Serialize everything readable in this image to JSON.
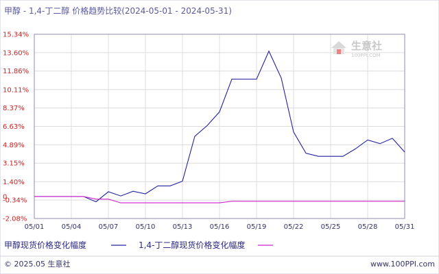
{
  "chart_data": {
    "type": "line",
    "title": "甲醇 - 1,4-丁二醇 价格趋势比较(2024-05-01 - 2024-05-31)",
    "x": [
      "05/01",
      "05/02",
      "05/03",
      "05/04",
      "05/05",
      "05/06",
      "05/07",
      "05/08",
      "05/09",
      "05/10",
      "05/11",
      "05/12",
      "05/13",
      "05/14",
      "05/15",
      "05/16",
      "05/17",
      "05/18",
      "05/19",
      "05/20",
      "05/21",
      "05/22",
      "05/23",
      "05/24",
      "05/25",
      "05/26",
      "05/27",
      "05/28",
      "05/29",
      "05/30",
      "05/31"
    ],
    "x_tick_labels": [
      "05/01",
      "05/04",
      "05/07",
      "05/10",
      "05/13",
      "05/16",
      "05/19",
      "05/22",
      "05/25",
      "05/28",
      "05/31"
    ],
    "y_tick_labels": [
      "15.34%",
      "13.60%",
      "11.86%",
      "10.11%",
      "8.37%",
      "6.63%",
      "4.89%",
      "3.15%",
      "1.40%",
      "-0.34%",
      "-2.08%"
    ],
    "y_ticks": [
      15.34,
      13.6,
      11.86,
      10.11,
      8.37,
      6.63,
      4.89,
      3.15,
      1.4,
      -0.34,
      -2.08
    ],
    "ylim": [
      -2.08,
      15.34
    ],
    "zero_label": "0",
    "grid": true,
    "legend_position": "bottom",
    "series": [
      {
        "name": "甲醇现货价格变化幅度",
        "color": "#2020a0",
        "values": [
          0,
          0,
          0,
          0,
          0,
          -0.5,
          0.45,
          0.05,
          0.5,
          0.25,
          1.0,
          1.0,
          1.45,
          5.7,
          6.7,
          8.0,
          11.1,
          11.1,
          11.1,
          13.75,
          11.2,
          6.1,
          4.1,
          3.8,
          3.8,
          3.8,
          4.5,
          5.35,
          5.0,
          5.5,
          4.2
        ]
      },
      {
        "name": "1,4-丁二醇现货价格变化幅度",
        "color": "#cc22cc",
        "values": [
          0,
          0,
          0,
          0,
          0,
          -0.25,
          -0.25,
          -0.6,
          -0.6,
          -0.6,
          -0.6,
          -0.6,
          -0.6,
          -0.6,
          -0.6,
          -0.6,
          -0.45,
          -0.45,
          -0.45,
          -0.45,
          -0.45,
          -0.45,
          -0.45,
          -0.45,
          -0.45,
          -0.45,
          -0.45,
          -0.45,
          -0.45,
          -0.45,
          -0.45
        ]
      }
    ]
  },
  "watermark": {
    "brand": "生意社",
    "url": "100PPI.COM"
  },
  "footer": {
    "copyright": "© 2025.05 生意社",
    "site": "www.100PPI.com"
  }
}
